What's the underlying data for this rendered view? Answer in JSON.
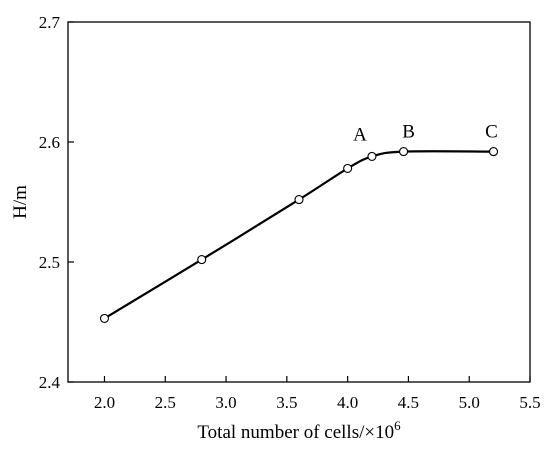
{
  "chart_data": {
    "type": "line",
    "title": "",
    "xlabel": "Total number of cells/×10",
    "xlabel_superscript": "6",
    "ylabel": "H/m",
    "xlim": [
      1.7,
      5.5
    ],
    "ylim": [
      2.4,
      2.7
    ],
    "x_ticks": [
      "2.0",
      "2.5",
      "3.0",
      "3.5",
      "4.0",
      "4.5",
      "5.0",
      "5.5"
    ],
    "y_ticks": [
      "2.4",
      "2.5",
      "2.6",
      "2.7"
    ],
    "grid": false,
    "legend": "none",
    "series": [
      {
        "x": [
          2.0,
          2.8,
          3.6,
          4.0,
          4.2,
          4.46,
          5.2
        ],
        "y": [
          2.453,
          2.502,
          2.552,
          2.578,
          2.588,
          2.592,
          2.592
        ],
        "marker": "open-circle",
        "color": "#000000"
      }
    ],
    "annotations": [
      {
        "text": "A",
        "x": 4.2,
        "y": 2.588
      },
      {
        "text": "B",
        "x": 4.46,
        "y": 2.592
      },
      {
        "text": "C",
        "x": 5.2,
        "y": 2.592
      }
    ]
  }
}
